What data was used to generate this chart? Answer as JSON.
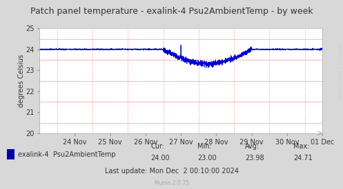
{
  "title": "Patch panel temperature - exalink-4 Psu2AmbientTemp - by week",
  "ylabel": "degrees Celsius",
  "line_color": "#0000cc",
  "bg_color": "#d8d8d8",
  "plot_bg_color": "#ffffff",
  "grid_color_major": "#ffffff",
  "grid_color_minor": "#ffaaaa",
  "ylim": [
    20,
    25
  ],
  "yticks": [
    20,
    21,
    22,
    23,
    24,
    25
  ],
  "x_tick_labels": [
    "24 Nov",
    "25 Nov",
    "26 Nov",
    "27 Nov",
    "28 Nov",
    "29 Nov",
    "30 Nov",
    "01 Dec"
  ],
  "legend_label": "exalink-4  Psu2AmbientTemp",
  "legend_color": "#0000aa",
  "cur_val": "24.00",
  "min_val": "23.00",
  "avg_val": "23.98",
  "max_val": "24.71",
  "last_update": "Last update: Mon Dec  2 00:10:00 2024",
  "munin_version": "Munin 2.0.75",
  "right_label": "RRDTOOL / TOBI OETIKER",
  "title_fontsize": 9,
  "axis_fontsize": 7,
  "legend_fontsize": 7,
  "stats_fontsize": 7
}
